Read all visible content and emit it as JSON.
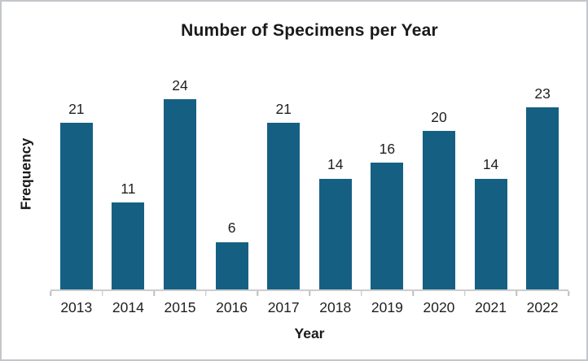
{
  "figure": {
    "background_color": "#ffffff",
    "border_color": "#c3c7cb"
  },
  "chart_data": {
    "type": "bar",
    "title": "Number of Specimens per Year",
    "xlabel": "Year",
    "ylabel": "Frequency",
    "categories": [
      "2013",
      "2014",
      "2015",
      "2016",
      "2017",
      "2018",
      "2019",
      "2020",
      "2021",
      "2022"
    ],
    "values": [
      21,
      11,
      24,
      6,
      21,
      14,
      16,
      20,
      14,
      23
    ],
    "value_labels_shown": true,
    "bar_color": "#156082",
    "axis_line_color": "#cccccc",
    "text_color": "#1f1f1f",
    "ylim": [
      0,
      24
    ],
    "grid": false,
    "legend": "none",
    "y_tick_labels": "none"
  }
}
